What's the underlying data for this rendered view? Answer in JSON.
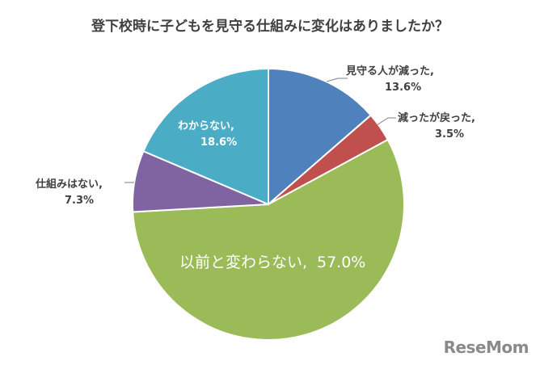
{
  "chart_data": {
    "type": "pie",
    "title": "登下校時に子どもを見守る仕組みに変化はありましたか？",
    "slices": [
      {
        "name": "見守る人が減った",
        "value": 13.6,
        "label_name": "見守る人が減った,",
        "label_value": "13.6%",
        "color": "#4f81bd"
      },
      {
        "name": "減ったが戻った",
        "value": 3.5,
        "label_name": "減ったが戻った,",
        "label_value": "3.5%",
        "color": "#c0504d"
      },
      {
        "name": "以前と変わらない",
        "value": 57.0,
        "label_name": "以前と変わらない,",
        "label_value": "57.0%",
        "color": "#9bbb59"
      },
      {
        "name": "仕組みはない",
        "value": 7.3,
        "label_name": "仕組みはない,",
        "label_value": "7.3%",
        "color": "#8064a2"
      },
      {
        "name": "わからない",
        "value": 18.6,
        "label_name": "わからない,",
        "label_value": "18.6%",
        "color": "#4bacc6"
      }
    ]
  },
  "logo": {
    "text": "ReseMom"
  }
}
